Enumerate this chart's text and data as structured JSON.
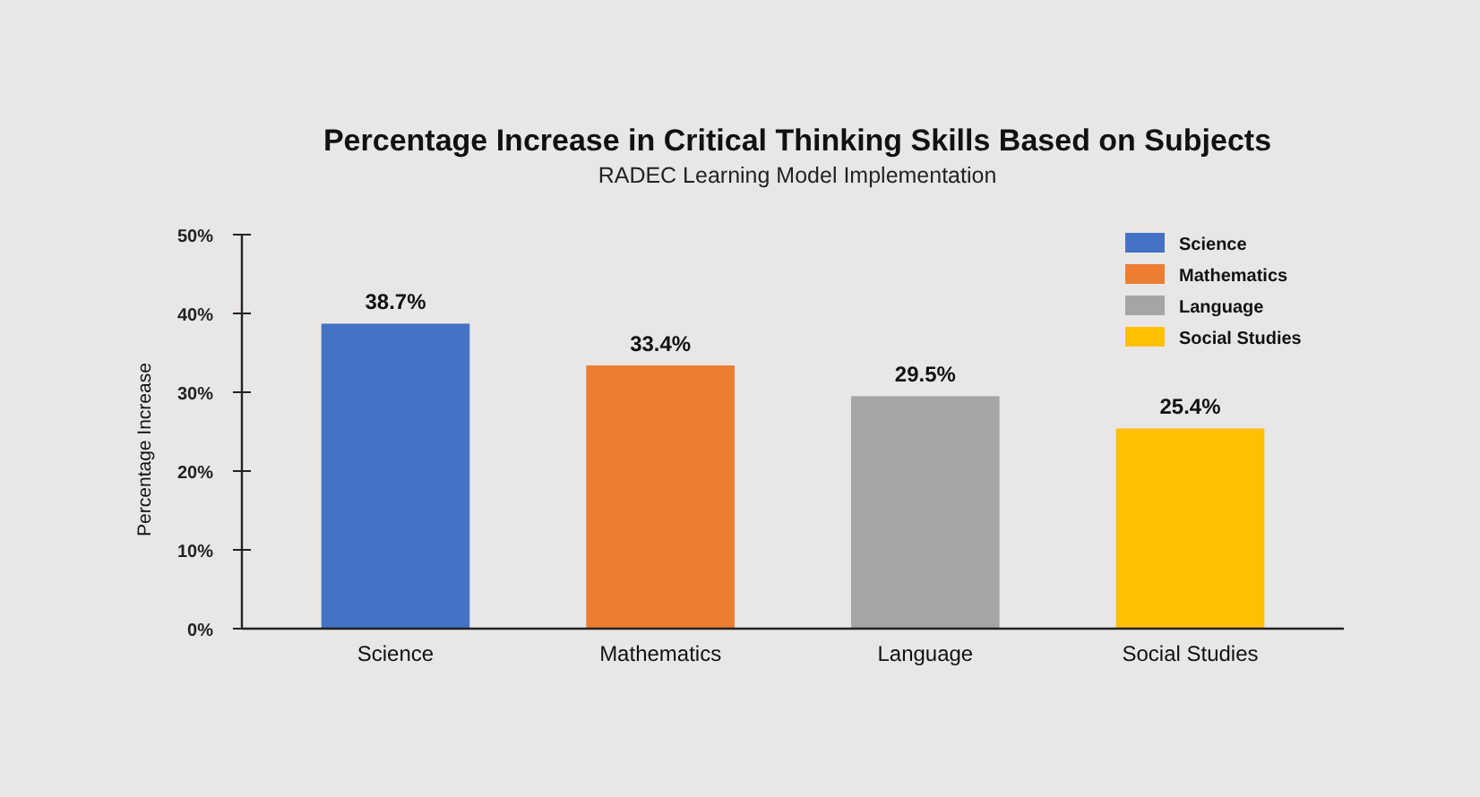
{
  "chart_data": {
    "type": "bar",
    "title": "Percentage Increase in Critical Thinking Skills Based on Subjects",
    "subtitle": "RADEC Learning Model Implementation",
    "ylabel": "Percentage Increase",
    "categories": [
      "Science",
      "Mathematics",
      "Language",
      "Social Studies"
    ],
    "stacked": true,
    "series": [
      {
        "name": "Science",
        "color": "#4472c4",
        "values": [
          38.7,
          null,
          null,
          null
        ],
        "value_labels": [
          "38.7%",
          null,
          null,
          null
        ]
      },
      {
        "name": "Mathematics",
        "color": "#ed7d31",
        "values": [
          null,
          33.4,
          null,
          null
        ],
        "value_labels": [
          null,
          "33.4%",
          null,
          null
        ]
      },
      {
        "name": "Language",
        "color": "#a5a5a5",
        "values": [
          null,
          null,
          29.5,
          null
        ],
        "value_labels": [
          null,
          null,
          "29.5%",
          null
        ]
      },
      {
        "name": "Social Studies",
        "color": "#ffc000",
        "values": [
          null,
          null,
          null,
          25.4
        ],
        "value_labels": [
          null,
          null,
          null,
          "25.4%"
        ]
      }
    ],
    "ylim": [
      0,
      50
    ],
    "yticks": [
      {
        "value": 0,
        "label": "0%"
      },
      {
        "value": 10,
        "label": "10%"
      },
      {
        "value": 20,
        "label": "20%"
      },
      {
        "value": 30,
        "label": "30%"
      },
      {
        "value": 40,
        "label": "40%"
      },
      {
        "value": 50,
        "label": "50%"
      }
    ],
    "legend": "top right"
  }
}
